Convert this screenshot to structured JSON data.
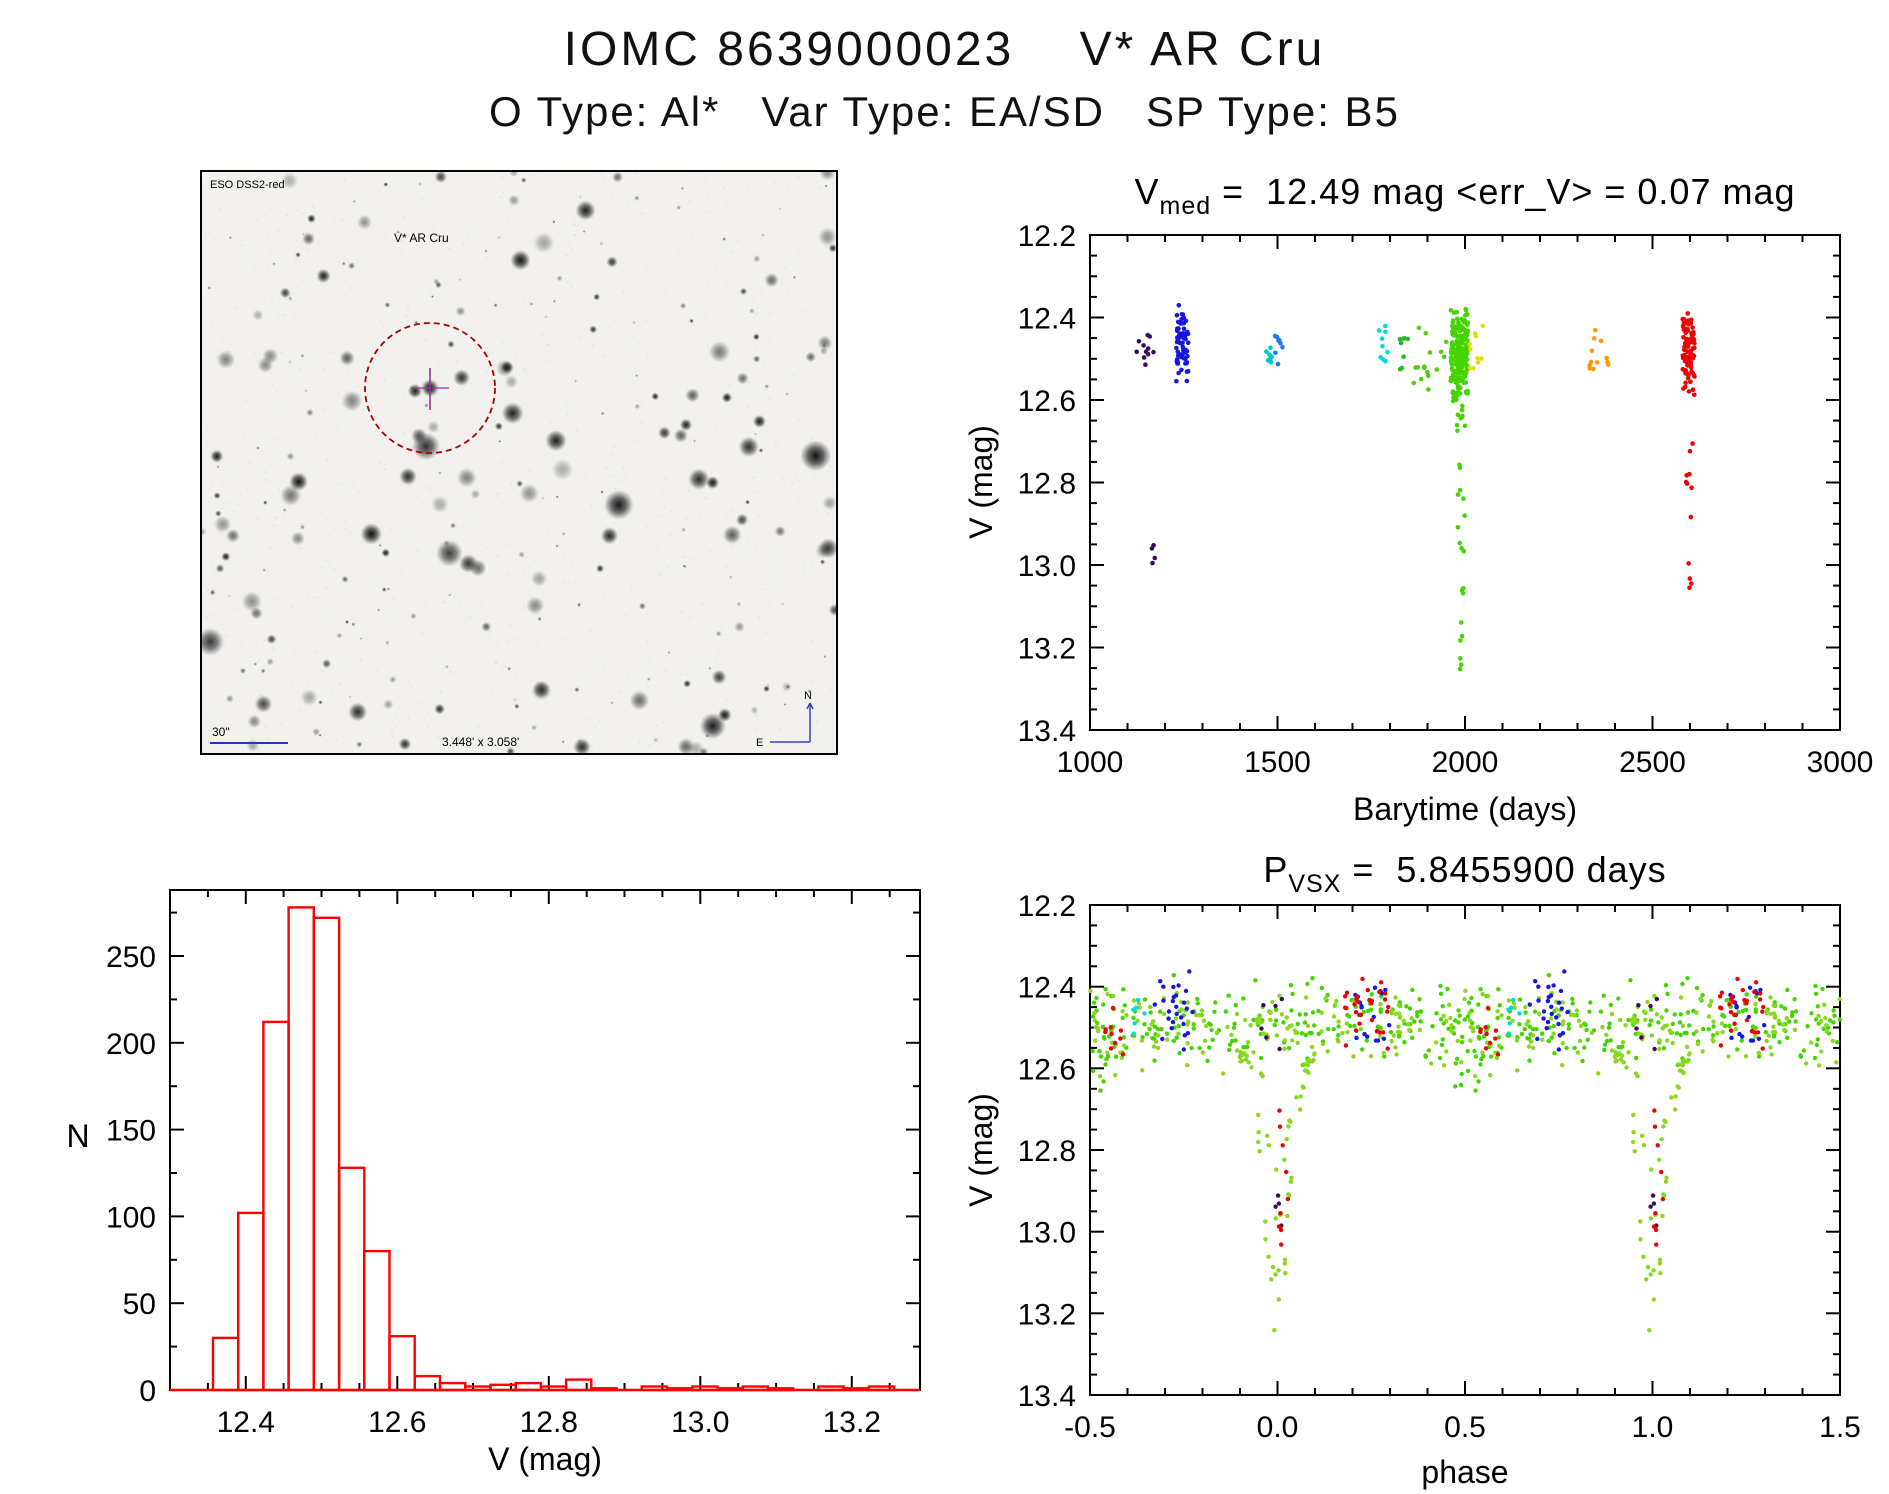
{
  "page": {
    "title": "IOMC 8639000023    V* AR Cru",
    "subtitle": "O Type: Al*   Var Type: EA/SD   SP Type: B5"
  },
  "finder_chart": {
    "survey_label": "ESO DSS2-red",
    "target_label": "V* AR Cru",
    "scale_label": "30\"",
    "fov_label": "3.448' x 3.058'",
    "compass_north": "N",
    "compass_east": "E",
    "circle_color": "#aa0000",
    "annotation_color": "#2233cc",
    "target_label_color": "#cc2222",
    "crosshair_color": "#993399"
  },
  "chart_data": [
    {
      "id": "barytime-lightcurve",
      "type": "scatter",
      "title": {
        "p1": "V",
        "p2": "med",
        "p3": " =  12.49 mag <err_V> = 0.07 mag"
      },
      "vmed_mag": 12.49,
      "err_v_mag": 0.07,
      "xlabel": "Barytime (days)",
      "ylabel": "V (mag)",
      "xlim": [
        1000,
        3000
      ],
      "ylim": [
        12.2,
        13.4
      ],
      "y_axis_note": "magnitude axis, bright (12.2) at top",
      "xticks": [
        1000,
        1500,
        2000,
        2500,
        3000
      ],
      "xtick_labels": [
        "1000",
        "1500",
        "2000",
        "2500",
        "3000"
      ],
      "yticks": [
        12.2,
        12.4,
        12.6,
        12.8,
        13.0,
        13.2,
        13.4
      ],
      "ytick_labels": [
        "12.2",
        "12.4",
        "12.6",
        "12.8",
        "13.0",
        "13.2",
        "13.4"
      ],
      "grid": false,
      "legend": false,
      "clusters": [
        {
          "label": "epoch 1150d",
          "color": "#3d0a57",
          "n": 11,
          "x": [
            1120,
            1178
          ],
          "ydist": "uniform",
          "y": [
            12.43,
            12.53
          ]
        },
        {
          "label": "epoch 1165d faint",
          "color": "#3d0a57",
          "n": 4,
          "x": [
            1160,
            1176
          ],
          "ydist": "uniform",
          "y": [
            12.86,
            13.02
          ]
        },
        {
          "label": "epoch 1250d blue",
          "color": "#1616e0",
          "n": 70,
          "x": [
            1230,
            1262
          ],
          "ydist": "gauss",
          "y": [
            12.465,
            0.05
          ],
          "yclip": [
            12.34,
            12.59
          ]
        },
        {
          "label": "epoch 1480d cyan",
          "color": "#00c8c8",
          "n": 7,
          "x": [
            1468,
            1492
          ],
          "ydist": "uniform",
          "y": [
            12.45,
            12.51
          ]
        },
        {
          "label": "epoch 1505d blue",
          "color": "#2277ee",
          "n": 8,
          "x": [
            1492,
            1516
          ],
          "ydist": "uniform",
          "y": [
            12.44,
            12.52
          ]
        },
        {
          "label": "epoch 1790d cyan",
          "color": "#00dada",
          "n": 9,
          "x": [
            1768,
            1800
          ],
          "ydist": "uniform",
          "y": [
            12.42,
            12.51
          ]
        },
        {
          "label": "epoch 1840d green",
          "color": "#22bb22",
          "n": 8,
          "x": [
            1825,
            1855
          ],
          "ydist": "uniform",
          "y": [
            12.45,
            12.54
          ]
        },
        {
          "label": "epoch 1900d sparse green",
          "color": "#55cc11",
          "n": 16,
          "x": [
            1862,
            1958
          ],
          "ydist": "uniform",
          "y": [
            12.42,
            12.58
          ]
        },
        {
          "label": "epoch 1990d dense green",
          "color": "#44d400",
          "n": 210,
          "x": [
            1962,
            2008
          ],
          "ydist": "gauss",
          "y": [
            12.5,
            0.055
          ],
          "yclip": [
            12.37,
            12.65
          ]
        },
        {
          "label": "epoch 1990d egress",
          "color": "#44d400",
          "n": 14,
          "x": [
            1978,
            2002
          ],
          "ydist": "uniform",
          "y": [
            12.62,
            13.0
          ]
        },
        {
          "label": "epoch 1990d eclipse",
          "color": "#44d400",
          "n": 9,
          "x": [
            1984,
            2000
          ],
          "ydist": "uniform",
          "y": [
            13.02,
            13.26
          ]
        },
        {
          "label": "epoch 2030d yellow",
          "color": "#e0e000",
          "n": 10,
          "x": [
            2012,
            2048
          ],
          "ydist": "uniform",
          "y": [
            12.42,
            12.56
          ]
        },
        {
          "label": "epoch 2370d orange",
          "color": "#ff9900",
          "n": 12,
          "x": [
            2330,
            2382
          ],
          "ydist": "uniform",
          "y": [
            12.43,
            12.53
          ]
        },
        {
          "label": "epoch 2600d dense red",
          "color": "#ee0000",
          "n": 90,
          "x": [
            2580,
            2612
          ],
          "ydist": "gauss",
          "y": [
            12.475,
            0.05
          ],
          "yclip": [
            12.37,
            12.6
          ]
        },
        {
          "label": "epoch 2600d egress red",
          "color": "#ee0000",
          "n": 8,
          "x": [
            2588,
            2608
          ],
          "ydist": "uniform",
          "y": [
            12.68,
            12.9
          ]
        },
        {
          "label": "epoch 2600d eclipse red",
          "color": "#ee0000",
          "n": 4,
          "x": [
            2592,
            2606
          ],
          "ydist": "uniform",
          "y": [
            12.96,
            13.08
          ]
        }
      ]
    },
    {
      "id": "v-histogram",
      "type": "bar",
      "xlabel": "V (mag)",
      "ylabel": "N",
      "xlim": [
        12.3,
        13.29
      ],
      "ylim": [
        0,
        288
      ],
      "xticks": [
        12.4,
        12.6,
        12.8,
        13.0,
        13.2
      ],
      "xtick_labels": [
        "12.4",
        "12.6",
        "12.8",
        "13.0",
        "13.2"
      ],
      "yticks": [
        0,
        50,
        100,
        150,
        200,
        250
      ],
      "ytick_labels": [
        "0",
        "50",
        "100",
        "150",
        "200",
        "250"
      ],
      "bar_color": "#ff0000",
      "bin_start": 12.3567,
      "bin_width": 0.0333,
      "counts": [
        30,
        102,
        212,
        278,
        272,
        128,
        80,
        31,
        8,
        4,
        2,
        3,
        4,
        2,
        6,
        1,
        0,
        2,
        1,
        2,
        1,
        2,
        1,
        0,
        2,
        1,
        2
      ]
    },
    {
      "id": "phase-folded-lightcurve",
      "type": "scatter",
      "title": {
        "p1": "P",
        "p2": "VSX",
        "p3": " =  5.8455900 days"
      },
      "period_days": 5.84559,
      "xlabel": "phase",
      "ylabel": "V (mag)",
      "xlim": [
        -0.5,
        1.5
      ],
      "ylim": [
        12.2,
        13.4
      ],
      "y_axis_note": "magnitude axis, bright (12.2) at top; points repeated at phase and phase+1",
      "xticks": [
        -0.5,
        0.0,
        0.5,
        1.0,
        1.5
      ],
      "xtick_labels": [
        "-0.5",
        "0.0",
        "0.5",
        "1.0",
        "1.5"
      ],
      "yticks": [
        12.2,
        12.4,
        12.6,
        12.8,
        13.0,
        13.2,
        13.4
      ],
      "ytick_labels": [
        "12.2",
        "12.4",
        "12.6",
        "12.8",
        "13.0",
        "13.2",
        "13.4"
      ],
      "grid": false,
      "legend": false,
      "clusters": [
        {
          "label": "out-of-eclipse green",
          "color": "#44d400",
          "n": 190,
          "x": [
            -0.5,
            0.5
          ],
          "ydist": "gauss",
          "y": [
            12.49,
            0.045
          ],
          "yclip": [
            12.37,
            12.62
          ],
          "dup": true
        },
        {
          "label": "out-of-eclipse yellow-green",
          "color": "#88d81e",
          "n": 150,
          "x": [
            -0.5,
            0.5
          ],
          "ydist": "gauss",
          "y": [
            12.5,
            0.05
          ],
          "yclip": [
            12.37,
            12.63
          ],
          "dup": true
        },
        {
          "label": "blue group 1",
          "color": "#1616e0",
          "n": 26,
          "x": [
            -0.33,
            -0.22
          ],
          "ydist": "gauss",
          "y": [
            12.47,
            0.05
          ],
          "yclip": [
            12.36,
            12.58
          ],
          "dup": true
        },
        {
          "label": "blue group 2",
          "color": "#1616e0",
          "n": 18,
          "x": [
            0.2,
            0.3
          ],
          "ydist": "uniform",
          "y": [
            12.4,
            12.56
          ],
          "dup": true
        },
        {
          "label": "red group 1",
          "color": "#ee0000",
          "n": 10,
          "x": [
            -0.46,
            -0.41
          ],
          "ydist": "uniform",
          "y": [
            12.45,
            12.58
          ],
          "dup": true
        },
        {
          "label": "red group 2",
          "color": "#ee0000",
          "n": 30,
          "x": [
            0.18,
            0.3
          ],
          "ydist": "gauss",
          "y": [
            12.48,
            0.045
          ],
          "yclip": [
            12.38,
            12.58
          ],
          "dup": true
        },
        {
          "label": "cyan group",
          "color": "#00dada",
          "n": 6,
          "x": [
            -0.4,
            -0.35
          ],
          "ydist": "uniform",
          "y": [
            12.42,
            12.52
          ],
          "dup": true
        },
        {
          "label": "purple near eclipse top",
          "color": "#3d0a57",
          "n": 6,
          "x": [
            -0.06,
            0.02
          ],
          "ydist": "uniform",
          "y": [
            12.42,
            12.56
          ],
          "dup": true
        },
        {
          "label": "purple in eclipse",
          "color": "#3d0a57",
          "n": 4,
          "x": [
            -0.01,
            0.02
          ],
          "ydist": "uniform",
          "y": [
            12.88,
            13.01
          ],
          "dup": true
        },
        {
          "label": "primary eclipse dip",
          "color": "#88d81e",
          "n": 60,
          "x": [
            -0.1,
            0.1
          ],
          "ydist": "dip",
          "dip": {
            "sigma": 0.035,
            "top": 12.56,
            "bottom": 13.27
          },
          "dup": true
        },
        {
          "label": "in-eclipse red",
          "color": "#ee0000",
          "n": 9,
          "x": [
            0.004,
            0.028
          ],
          "ydist": "uniform",
          "y": [
            12.7,
            13.07
          ],
          "dup": true
        },
        {
          "label": "secondary eclipse hint",
          "color": "#44d400",
          "n": 14,
          "x": [
            -0.53,
            -0.45
          ],
          "ydist": "uniform",
          "y": [
            12.52,
            12.66
          ],
          "dup": true
        }
      ]
    }
  ]
}
